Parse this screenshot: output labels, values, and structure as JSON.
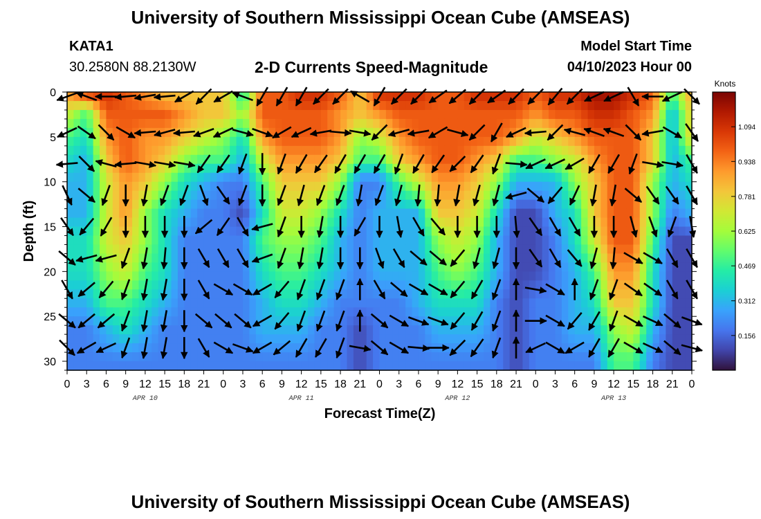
{
  "header": {
    "title": "University of Southern Mississippi Ocean Cube (AMSEAS)",
    "station_id": "KATA1",
    "station_coords": "30.2580N  88.2130W",
    "plot_title": "2-D Currents Speed-Magnitude",
    "model_start_label": "Model Start Time",
    "model_start_value": "04/10/2023 Hour 00"
  },
  "footer": {
    "title": "University of Southern Mississippi Ocean Cube (AMSEAS)"
  },
  "colors": {
    "colormap": [
      "#30123b",
      "#4145ab",
      "#4675ed",
      "#39a2fc",
      "#1bcfd4",
      "#24eca6",
      "#61fc6c",
      "#a4fc3b",
      "#d1e834",
      "#f3c63a",
      "#fe9b2d",
      "#f36315",
      "#d93806",
      "#b11901",
      "#7a0403"
    ]
  },
  "chart_data": {
    "type": "heatmap",
    "title": "2-D Currents Speed-Magnitude",
    "xlabel": "Forecast Time(Z)",
    "ylabel": "Depth (ft)",
    "colorbar_label": "Knots",
    "colorbar_ticks": [
      "0.156",
      "0.312",
      "0.469",
      "0.625",
      "0.781",
      "0.938",
      "1.094"
    ],
    "colorbar_range": [
      0,
      1.25
    ],
    "x_range_hours": [
      0,
      96
    ],
    "y_range_ft": [
      0,
      31
    ],
    "x_tick_labels": [
      "0",
      "3",
      "6",
      "9",
      "12",
      "15",
      "18",
      "21",
      "0",
      "3",
      "6",
      "9",
      "12",
      "15",
      "18",
      "21",
      "0",
      "3",
      "6",
      "9",
      "12",
      "15",
      "18",
      "21",
      "0",
      "3",
      "6",
      "9",
      "12",
      "15",
      "18",
      "21",
      "0"
    ],
    "y_tick_labels": [
      "0",
      "5",
      "10",
      "15",
      "20",
      "25",
      "30"
    ],
    "y_tick_values": [
      0,
      5,
      10,
      15,
      20,
      25,
      30
    ],
    "day_labels": [
      {
        "label": "APR 10",
        "hour": 12
      },
      {
        "label": "APR 11",
        "hour": 36
      },
      {
        "label": "APR 12",
        "hour": 60
      },
      {
        "label": "APR 13",
        "hour": 84
      }
    ],
    "time_hours": [
      0,
      3,
      6,
      9,
      12,
      15,
      18,
      21,
      24,
      27,
      30,
      33,
      36,
      39,
      42,
      45,
      48,
      51,
      54,
      57,
      60,
      63,
      66,
      69,
      72,
      75,
      78,
      81,
      84,
      87,
      90,
      93,
      96
    ],
    "depths_ft": [
      0,
      2.5,
      5,
      7.5,
      10,
      13.5,
      16.5,
      20,
      23.5,
      26.5,
      30
    ],
    "speed_knots": [
      [
        0.9,
        1.1,
        1.1,
        1.0,
        0.9,
        0.8,
        0.8,
        0.8,
        0.8,
        0.4,
        1.0,
        1.0,
        1.1,
        1.1,
        1.0,
        0.8,
        1.1,
        1.1,
        1.1,
        1.0,
        1.0,
        1.1,
        1.1,
        1.1,
        1.0,
        1.1,
        1.1,
        1.2,
        1.2,
        1.1,
        1.0,
        0.5,
        0.9
      ],
      [
        0.7,
        0.5,
        1.0,
        1.0,
        1.0,
        1.0,
        0.9,
        0.8,
        0.8,
        0.6,
        1.0,
        1.0,
        1.0,
        1.0,
        0.9,
        0.8,
        0.9,
        1.0,
        1.0,
        1.0,
        1.0,
        1.0,
        1.0,
        1.0,
        0.9,
        1.0,
        1.0,
        1.1,
        1.1,
        1.0,
        0.9,
        0.3,
        0.8
      ],
      [
        0.5,
        0.4,
        0.9,
        1.0,
        0.9,
        0.9,
        0.8,
        0.7,
        0.6,
        0.4,
        0.9,
        1.0,
        1.0,
        1.0,
        0.9,
        0.6,
        0.7,
        0.9,
        1.0,
        1.0,
        1.0,
        1.0,
        1.0,
        0.9,
        0.7,
        0.8,
        0.9,
        1.0,
        1.0,
        1.0,
        0.8,
        0.3,
        0.8
      ],
      [
        0.4,
        0.3,
        0.8,
        1.0,
        0.9,
        0.8,
        0.6,
        0.5,
        0.5,
        0.3,
        0.7,
        0.9,
        0.9,
        0.9,
        0.8,
        0.5,
        0.5,
        0.8,
        0.9,
        1.0,
        1.0,
        0.9,
        0.8,
        0.5,
        0.5,
        0.6,
        0.7,
        0.9,
        1.0,
        1.0,
        0.8,
        0.3,
        0.5
      ],
      [
        0.3,
        0.3,
        0.7,
        0.9,
        0.8,
        0.6,
        0.4,
        0.3,
        0.2,
        0.2,
        0.5,
        0.8,
        0.8,
        0.8,
        0.6,
        0.2,
        0.2,
        0.5,
        0.7,
        0.9,
        0.9,
        0.8,
        0.6,
        0.3,
        0.3,
        0.3,
        0.6,
        0.8,
        1.0,
        1.0,
        0.6,
        0.3,
        0.4
      ],
      [
        0.3,
        0.3,
        0.7,
        0.9,
        0.6,
        0.4,
        0.3,
        0.2,
        0.2,
        0.1,
        0.4,
        0.7,
        0.7,
        0.6,
        0.4,
        0.2,
        0.3,
        0.3,
        0.3,
        0.8,
        0.8,
        0.7,
        0.4,
        0.1,
        0.1,
        0.3,
        0.4,
        0.8,
        1.0,
        1.0,
        0.6,
        0.2,
        0.3
      ],
      [
        0.4,
        0.4,
        0.7,
        0.8,
        0.6,
        0.4,
        0.2,
        0.2,
        0.2,
        0.2,
        0.5,
        0.6,
        0.6,
        0.5,
        0.3,
        0.2,
        0.3,
        0.3,
        0.3,
        0.6,
        0.7,
        0.6,
        0.3,
        0.1,
        0.1,
        0.2,
        0.4,
        0.7,
        1.0,
        1.0,
        0.5,
        0.1,
        0.1
      ],
      [
        0.4,
        0.4,
        0.6,
        0.7,
        0.5,
        0.4,
        0.2,
        0.2,
        0.2,
        0.2,
        0.4,
        0.5,
        0.5,
        0.4,
        0.3,
        0.2,
        0.3,
        0.3,
        0.3,
        0.5,
        0.6,
        0.5,
        0.3,
        0.1,
        0.1,
        0.2,
        0.3,
        0.5,
        0.9,
        0.9,
        0.4,
        0.1,
        0.1
      ],
      [
        0.3,
        0.3,
        0.5,
        0.5,
        0.4,
        0.3,
        0.2,
        0.2,
        0.2,
        0.2,
        0.3,
        0.4,
        0.4,
        0.3,
        0.2,
        0.2,
        0.2,
        0.2,
        0.3,
        0.4,
        0.4,
        0.4,
        0.2,
        0.1,
        0.2,
        0.2,
        0.3,
        0.4,
        0.8,
        0.8,
        0.4,
        0.1,
        0.1
      ],
      [
        0.2,
        0.2,
        0.3,
        0.4,
        0.3,
        0.2,
        0.2,
        0.2,
        0.2,
        0.2,
        0.3,
        0.3,
        0.3,
        0.2,
        0.2,
        0.1,
        0.2,
        0.2,
        0.2,
        0.3,
        0.3,
        0.3,
        0.2,
        0.1,
        0.2,
        0.2,
        0.3,
        0.3,
        0.6,
        0.7,
        0.3,
        0.1,
        0.1
      ],
      [
        0.2,
        0.2,
        0.2,
        0.2,
        0.2,
        0.2,
        0.2,
        0.2,
        0.2,
        0.2,
        0.2,
        0.2,
        0.2,
        0.2,
        0.2,
        0.1,
        0.2,
        0.2,
        0.2,
        0.2,
        0.2,
        0.2,
        0.2,
        0.1,
        0.2,
        0.2,
        0.2,
        0.2,
        0.5,
        0.5,
        0.2,
        0.1,
        0.1
      ]
    ],
    "vector_hours": [
      0,
      3,
      6,
      9,
      12,
      15,
      18,
      21,
      24,
      27,
      30,
      33,
      36,
      39,
      42,
      45,
      48,
      51,
      54,
      57,
      60,
      63,
      66,
      69,
      72,
      75,
      78,
      81,
      84,
      87,
      90,
      93,
      96
    ],
    "vector_depths_ft": [
      0.5,
      4.5,
      8,
      11.5,
      15,
      18.5,
      22,
      25.5,
      28.5
    ],
    "vector_direction_deg": [
      [
        250,
        290,
        270,
        265,
        260,
        265,
        240,
        225,
        240,
        290,
        210,
        210,
        210,
        225,
        225,
        300,
        210,
        225,
        225,
        235,
        230,
        225,
        235,
        225,
        225,
        220,
        225,
        245,
        245,
        150,
        270,
        245,
        135
      ],
      [
        245,
        125,
        135,
        120,
        265,
        255,
        265,
        250,
        245,
        105,
        110,
        240,
        245,
        260,
        95,
        100,
        225,
        255,
        260,
        240,
        105,
        225,
        210,
        245,
        265,
        225,
        285,
        290,
        290,
        135,
        260,
        120,
        145
      ],
      [
        265,
        135,
        285,
        265,
        100,
        100,
        100,
        215,
        215,
        200,
        180,
        200,
        210,
        215,
        210,
        210,
        210,
        200,
        210,
        215,
        225,
        215,
        200,
        95,
        245,
        245,
        240,
        210,
        210,
        200,
        100,
        100,
        150
      ],
      [
        155,
        130,
        200,
        180,
        190,
        200,
        200,
        160,
        145,
        200,
        180,
        200,
        195,
        200,
        200,
        190,
        200,
        195,
        185,
        185,
        190,
        195,
        195,
        255,
        130,
        220,
        205,
        190,
        190,
        130,
        145,
        145,
        150
      ],
      [
        145,
        220,
        210,
        180,
        180,
        180,
        180,
        230,
        215,
        150,
        255,
        200,
        180,
        190,
        180,
        210,
        180,
        170,
        150,
        140,
        180,
        180,
        180,
        175,
        145,
        150,
        150,
        180,
        180,
        165,
        160,
        200,
        170
      ],
      [
        130,
        255,
        255,
        200,
        190,
        185,
        180,
        150,
        150,
        150,
        250,
        200,
        190,
        190,
        180,
        180,
        160,
        150,
        130,
        130,
        220,
        195,
        195,
        180,
        145,
        150,
        140,
        195,
        185,
        120,
        120,
        150,
        150
      ],
      [
        150,
        230,
        220,
        200,
        190,
        190,
        180,
        150,
        120,
        120,
        240,
        220,
        200,
        200,
        200,
        0,
        150,
        130,
        120,
        120,
        220,
        210,
        200,
        0,
        100,
        120,
        0,
        200,
        200,
        125,
        125,
        150,
        150
      ],
      [
        130,
        230,
        230,
        200,
        190,
        190,
        180,
        130,
        130,
        130,
        240,
        220,
        200,
        200,
        200,
        0,
        130,
        120,
        110,
        110,
        220,
        210,
        200,
        0,
        90,
        120,
        220,
        210,
        200,
        120,
        115,
        130,
        110
      ],
      [
        135,
        240,
        245,
        200,
        190,
        190,
        180,
        150,
        120,
        110,
        240,
        230,
        210,
        210,
        200,
        100,
        130,
        120,
        95,
        90,
        225,
        215,
        200,
        0,
        245,
        120,
        240,
        210,
        210,
        120,
        115,
        130,
        105
      ]
    ]
  }
}
